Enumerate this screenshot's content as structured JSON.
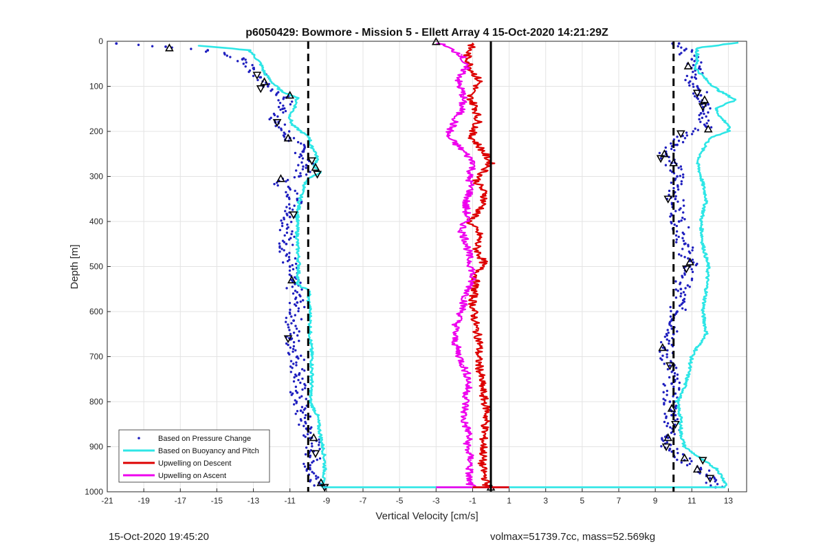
{
  "footer": {
    "left_text": "15-Oct-2020 19:45:20",
    "right_text": "volmax=51739.7cc, mass=52.569kg"
  },
  "chart_data": {
    "type": "scatter",
    "title": "p6050429: Bowmore - Mission 5 - Ellett Array 4 15-Oct-2020 14:21:29Z",
    "xlabel": "Vertical Velocity [cm/s]",
    "ylabel": "Depth [m]",
    "xlim": [
      -21,
      14
    ],
    "ylim": [
      0,
      1000
    ],
    "y_reversed": true,
    "grid": true,
    "xticks": [
      -21,
      -19,
      -17,
      -15,
      -13,
      -11,
      -9,
      -7,
      -5,
      -3,
      -1,
      1,
      3,
      5,
      7,
      9,
      11,
      13
    ],
    "yticks": [
      0,
      100,
      200,
      300,
      400,
      500,
      600,
      700,
      800,
      900,
      1000
    ],
    "legend_position": "bottom-left",
    "series": [
      {
        "name": "Based on Pressure Change",
        "style": "dots",
        "color": "#1f1fbf",
        "profiles": [
          {
            "depth": [
              5,
              12,
              20,
              40,
              60,
              80,
              100,
              125,
              150,
              180,
              215,
              245,
              275,
              300,
              310,
              350,
              390,
              450,
              500,
              530,
              580,
              620,
              660,
              700,
              740,
              780,
              820,
              860,
              880,
              910,
              950,
              980,
              990
            ],
            "velocity": [
              -20.5,
              -17.8,
              -15.5,
              -13.6,
              -13.0,
              -12.6,
              -12.2,
              -11.2,
              -11.4,
              -11.8,
              -11.0,
              -10.3,
              -10.1,
              -10.5,
              -11.6,
              -10.6,
              -11.0,
              -11.2,
              -11.0,
              -10.9,
              -10.6,
              -10.8,
              -10.9,
              -10.6,
              -10.5,
              -10.6,
              -10.4,
              -10.1,
              -9.8,
              -9.7,
              -9.9,
              -9.4,
              -9.1
            ]
          },
          {
            "depth": [
              5,
              20,
              40,
              60,
              80,
              100,
              120,
              140,
              160,
              190,
              210,
              230,
              250,
              270,
              300,
              350,
              400,
              450,
              500,
              550,
              600,
              650,
              680,
              720,
              760,
              800,
              830,
              860,
              880,
              905,
              930,
              950,
              970,
              990
            ],
            "velocity": [
              10.3,
              10.6,
              11.0,
              11.4,
              11.0,
              11.3,
              11.5,
              11.9,
              11.5,
              11.8,
              10.5,
              10.2,
              9.6,
              9.9,
              10.2,
              10.1,
              10.3,
              10.6,
              10.9,
              10.4,
              10.2,
              10.0,
              9.5,
              9.8,
              9.9,
              9.8,
              9.9,
              10.0,
              9.7,
              9.8,
              10.6,
              11.5,
              12.0,
              12.3
            ]
          }
        ]
      },
      {
        "name": "Based on Buoyancy and Pitch",
        "style": "line",
        "color": "#2ee6e6",
        "profiles": [
          {
            "depth": [
              10,
              15,
              20,
              30,
              50,
              70,
              90,
              110,
              125,
              145,
              165,
              185,
              200,
              215,
              230,
              245,
              265,
              280,
              290,
              300,
              310,
              330,
              360,
              400,
              450,
              500,
              540,
              555,
              570,
              600,
              650,
              700,
              750,
              800,
              830,
              860,
              900,
              930,
              960,
              975,
              990
            ],
            "velocity": [
              -16.0,
              -14.5,
              -13.2,
              -13.0,
              -12.6,
              -12.4,
              -12.0,
              -11.5,
              -10.6,
              -10.7,
              -11.0,
              -10.9,
              -10.4,
              -9.9,
              -9.9,
              -9.6,
              -9.5,
              -9.7,
              -9.3,
              -9.8,
              -10.1,
              -10.3,
              -10.5,
              -10.6,
              -10.6,
              -10.5,
              -10.6,
              -9.9,
              -10.0,
              -9.9,
              -9.9,
              -9.8,
              -9.8,
              -9.9,
              -9.5,
              -9.4,
              -9.2,
              -9.1,
              -9.1,
              -9.2,
              -9.2
            ]
          },
          {
            "depth": [
              3,
              15,
              40,
              60,
              90,
              110,
              130,
              150,
              170,
              185,
              200,
              215,
              240,
              270,
              300,
              350,
              400,
              450,
              500,
              550,
              600,
              650,
              680,
              700,
              740,
              780,
              800,
              840,
              870,
              900,
              930,
              950,
              970,
              985,
              990
            ],
            "velocity": [
              13.5,
              11.3,
              11.3,
              11.2,
              11.9,
              12.5,
              13.4,
              12.3,
              12.6,
              13.0,
              13.0,
              12.0,
              11.6,
              11.3,
              11.5,
              11.8,
              11.5,
              11.6,
              11.9,
              11.8,
              11.6,
              11.8,
              11.3,
              11.0,
              10.8,
              10.5,
              10.2,
              10.4,
              10.4,
              10.6,
              11.6,
              12.4,
              12.7,
              12.9,
              12.8
            ]
          }
        ]
      },
      {
        "name": "Upwelling on Descent",
        "style": "line",
        "color": "#dd0000",
        "profiles": [
          {
            "depth": [
              5,
              30,
              60,
              90,
              120,
              150,
              180,
              210,
              240,
              270,
              290,
              310,
              340,
              370,
              400,
              430,
              460,
              490,
              520,
              550,
              580,
              610,
              640,
              670,
              700,
              730,
              760,
              790,
              820,
              850,
              880,
              910,
              940,
              970,
              990
            ],
            "velocity": [
              -1.0,
              -1.3,
              -1.1,
              -0.6,
              -1.2,
              -0.8,
              -0.7,
              -1.1,
              -0.5,
              0.0,
              -0.4,
              -0.8,
              -0.3,
              -0.5,
              -1.2,
              -0.6,
              -0.8,
              -0.4,
              -0.8,
              -0.9,
              -1.0,
              -0.9,
              -0.8,
              -0.6,
              -0.7,
              -0.6,
              -0.5,
              -0.4,
              -0.2,
              -0.3,
              -0.4,
              -0.4,
              -0.5,
              -0.3,
              -0.2
            ]
          }
        ]
      },
      {
        "name": "Upwelling on Ascent",
        "style": "line",
        "color": "#ee00ee",
        "profiles": [
          {
            "depth": [
              5,
              30,
              60,
              90,
              120,
              150,
              180,
              210,
              240,
              270,
              300,
              330,
              360,
              390,
              420,
              450,
              480,
              510,
              540,
              570,
              600,
              630,
              660,
              690,
              720,
              750,
              780,
              810,
              840,
              870,
              900,
              930,
              960,
              980,
              990
            ],
            "velocity": [
              -2.8,
              -1.6,
              -1.4,
              -1.8,
              -1.5,
              -1.6,
              -2.0,
              -2.4,
              -1.6,
              -0.9,
              -1.2,
              -1.1,
              -1.4,
              -1.3,
              -1.6,
              -1.3,
              -1.2,
              -1.0,
              -1.1,
              -1.4,
              -1.6,
              -1.9,
              -2.0,
              -1.8,
              -1.5,
              -1.2,
              -1.3,
              -1.4,
              -1.5,
              -1.2,
              -1.3,
              -1.1,
              -1.2,
              -1.2,
              -1.0
            ]
          }
        ]
      },
      {
        "name": "",
        "style": "markers",
        "color": "#000000",
        "profiles": [
          {
            "depth": [
              15,
              75,
              90,
              105,
              120,
              180,
              215,
              265,
              280,
              295,
              305,
              385,
              530,
              660,
              880,
              915,
              980,
              990
            ],
            "velocity": [
              -17.6,
              -12.8,
              -12.4,
              -12.6,
              -11.0,
              -11.7,
              -11.1,
              -9.8,
              -9.6,
              -9.5,
              -11.5,
              -10.8,
              -10.9,
              -11.1,
              -9.7,
              -9.6,
              -9.3,
              -9.1
            ]
          },
          {
            "depth": [
              1
            ],
            "velocity": [
              -3.0
            ]
          },
          {
            "depth": [
              990
            ],
            "velocity": [
              0.0
            ]
          },
          {
            "depth": [
              55,
              115,
              130,
              145,
              195,
              205,
              250,
              260,
              270,
              350,
              490,
              505,
              680,
              720,
              815,
              850,
              880,
              900,
              925,
              930,
              950,
              970
            ],
            "velocity": [
              10.8,
              11.3,
              11.7,
              11.6,
              11.9,
              10.4,
              9.5,
              9.3,
              10.0,
              9.7,
              10.9,
              10.7,
              9.4,
              9.8,
              9.9,
              10.1,
              9.7,
              9.6,
              10.6,
              11.6,
              11.3,
              12.0
            ]
          }
        ]
      }
    ],
    "reference_lines": [
      {
        "x": -10,
        "style": "dashed",
        "color": "#000000"
      },
      {
        "x": 0,
        "style": "solid",
        "color": "#000000"
      },
      {
        "x": 10,
        "style": "dashed",
        "color": "#000000"
      }
    ]
  }
}
